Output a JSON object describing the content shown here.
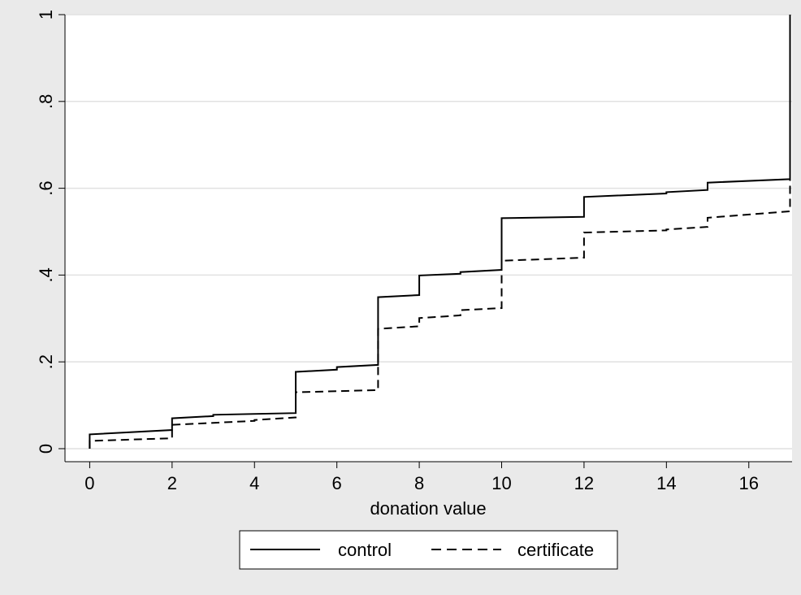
{
  "chart_data": {
    "type": "line",
    "step": true,
    "title": "",
    "xlabel": "donation value",
    "ylabel": "",
    "xlim": [
      -0.6,
      17.05
    ],
    "ylim": [
      -0.03,
      1.0
    ],
    "xticks": [
      0,
      2,
      4,
      6,
      8,
      10,
      12,
      14,
      16
    ],
    "xtick_labels": [
      "0",
      "2",
      "4",
      "6",
      "8",
      "10",
      "12",
      "14",
      "16"
    ],
    "yticks": [
      0,
      0.2,
      0.4,
      0.6,
      0.8,
      1
    ],
    "ytick_labels": [
      "0",
      ".2",
      ".4",
      ".6",
      ".8",
      "1"
    ],
    "grid": "horizontal",
    "legend_position": "bottom",
    "series": [
      {
        "name": "control",
        "line_style": "solid",
        "color": "#000000",
        "points": [
          [
            0,
            0.0
          ],
          [
            0,
            0.033
          ],
          [
            2,
            0.043
          ],
          [
            2,
            0.07
          ],
          [
            3,
            0.075
          ],
          [
            3,
            0.078
          ],
          [
            5,
            0.082
          ],
          [
            5,
            0.177
          ],
          [
            6,
            0.182
          ],
          [
            6,
            0.188
          ],
          [
            7,
            0.193
          ],
          [
            7,
            0.349
          ],
          [
            8,
            0.354
          ],
          [
            8,
            0.399
          ],
          [
            9,
            0.403
          ],
          [
            9,
            0.407
          ],
          [
            10,
            0.412
          ],
          [
            10,
            0.531
          ],
          [
            12,
            0.534
          ],
          [
            12,
            0.58
          ],
          [
            14,
            0.588
          ],
          [
            14,
            0.591
          ],
          [
            15,
            0.596
          ],
          [
            15,
            0.613
          ],
          [
            17,
            0.621
          ],
          [
            17,
            1.0
          ]
        ]
      },
      {
        "name": "certificate",
        "line_style": "dashed",
        "color": "#000000",
        "points": [
          [
            0,
            0.0
          ],
          [
            0,
            0.018
          ],
          [
            2,
            0.024
          ],
          [
            2,
            0.055
          ],
          [
            4,
            0.064
          ],
          [
            4,
            0.066
          ],
          [
            5,
            0.072
          ],
          [
            5,
            0.13
          ],
          [
            7,
            0.135
          ],
          [
            7,
            0.276
          ],
          [
            8,
            0.282
          ],
          [
            8,
            0.301
          ],
          [
            9,
            0.307
          ],
          [
            9,
            0.319
          ],
          [
            10,
            0.324
          ],
          [
            10,
            0.433
          ],
          [
            12,
            0.44
          ],
          [
            12,
            0.498
          ],
          [
            14,
            0.503
          ],
          [
            14,
            0.505
          ],
          [
            15,
            0.511
          ],
          [
            15,
            0.532
          ],
          [
            17,
            0.547
          ],
          [
            17,
            1.0
          ]
        ]
      }
    ]
  }
}
